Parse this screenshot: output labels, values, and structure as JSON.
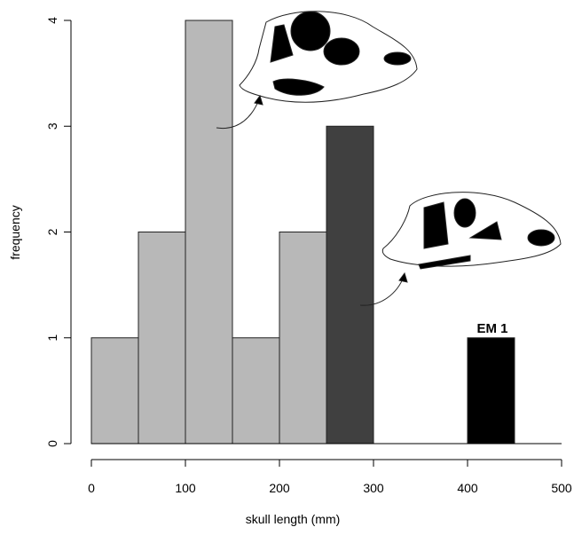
{
  "chart_data": {
    "type": "histogram",
    "xlabel": "skull length (mm)",
    "ylabel": "frequency",
    "bins": [
      0,
      50,
      100,
      150,
      200,
      250,
      300,
      350,
      400,
      450
    ],
    "values": [
      1,
      2,
      4,
      1,
      2,
      3,
      0,
      0,
      1
    ],
    "colors": [
      "#b8b8b8",
      "#b8b8b8",
      "#b8b8b8",
      "#b8b8b8",
      "#b8b8b8",
      "#404040",
      "#404040",
      "#404040",
      "#000000"
    ],
    "xlim": [
      0,
      500
    ],
    "xticks": [
      0,
      100,
      200,
      300,
      400,
      500
    ],
    "ylim": [
      0,
      4
    ],
    "yticks": [
      0,
      1,
      2,
      3,
      4
    ],
    "annotation": "EM 1"
  }
}
